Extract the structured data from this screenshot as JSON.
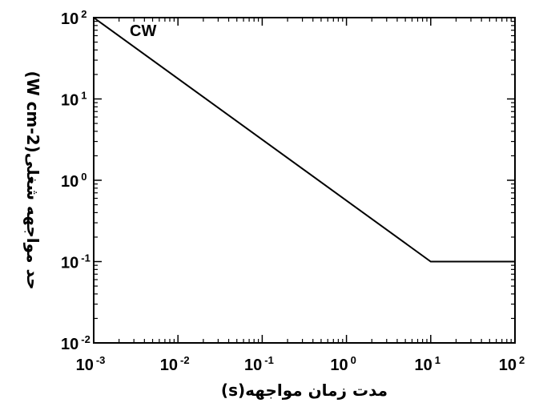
{
  "chart_data": {
    "type": "line",
    "xscale": "log",
    "yscale": "log",
    "xlim": [
      0.001,
      100
    ],
    "ylim": [
      0.01,
      100
    ],
    "x_ticks": [
      {
        "base": "10",
        "exp": "-3",
        "value": 0.001
      },
      {
        "base": "10",
        "exp": "-2",
        "value": 0.01
      },
      {
        "base": "10",
        "exp": "-1",
        "value": 0.1
      },
      {
        "base": "10",
        "exp": "0",
        "value": 1
      },
      {
        "base": "10",
        "exp": "1",
        "value": 10
      },
      {
        "base": "10",
        "exp": "2",
        "value": 100
      }
    ],
    "y_ticks": [
      {
        "base": "10",
        "exp": "-2",
        "value": 0.01
      },
      {
        "base": "10",
        "exp": "-1",
        "value": 0.1
      },
      {
        "base": "10",
        "exp": "0",
        "value": 1
      },
      {
        "base": "10",
        "exp": "1",
        "value": 10
      },
      {
        "base": "10",
        "exp": "2",
        "value": 100
      }
    ],
    "xlabel": "مدت زمان مواجهه(s)",
    "ylabel": "حد مواجهه شغلی(W cm-2)",
    "annotation": "CW",
    "series": [
      {
        "x": [
          0.001,
          10,
          100
        ],
        "y": [
          100,
          0.1,
          0.1
        ]
      }
    ],
    "grid": false
  }
}
